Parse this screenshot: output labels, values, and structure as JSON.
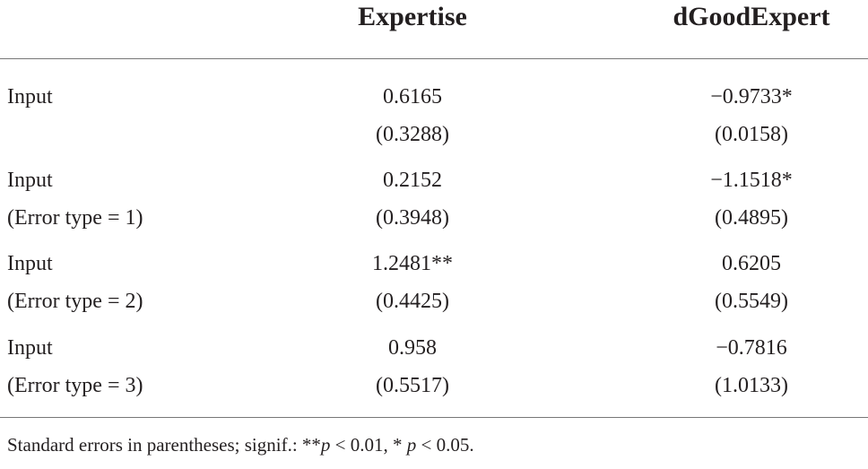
{
  "table": {
    "header": [
      null,
      "Expertise",
      "dGoodExpert"
    ],
    "rows": [
      [
        [
          "Input",
          "0.6165",
          "−0.9733*"
        ],
        [
          null,
          "(0.3288)",
          "(0.0158)"
        ]
      ],
      [
        [
          "Input",
          "0.2152",
          "−1.1518*"
        ],
        [
          "(Error type = 1)",
          "(0.3948)",
          "(0.4895)"
        ]
      ],
      [
        [
          "Input",
          "1.2481**",
          "0.6205"
        ],
        [
          "(Error type = 2)",
          "(0.4425)",
          "(0.5549)"
        ]
      ],
      [
        [
          "Input",
          "0.958",
          "−0.7816"
        ],
        [
          "(Error type = 3)",
          "(0.5517)",
          "(1.0133)"
        ]
      ]
    ],
    "note": [
      "Standard errors in parentheses; signif.: **",
      "p",
      " < 0.01, * ",
      "p",
      " < 0.05."
    ]
  }
}
